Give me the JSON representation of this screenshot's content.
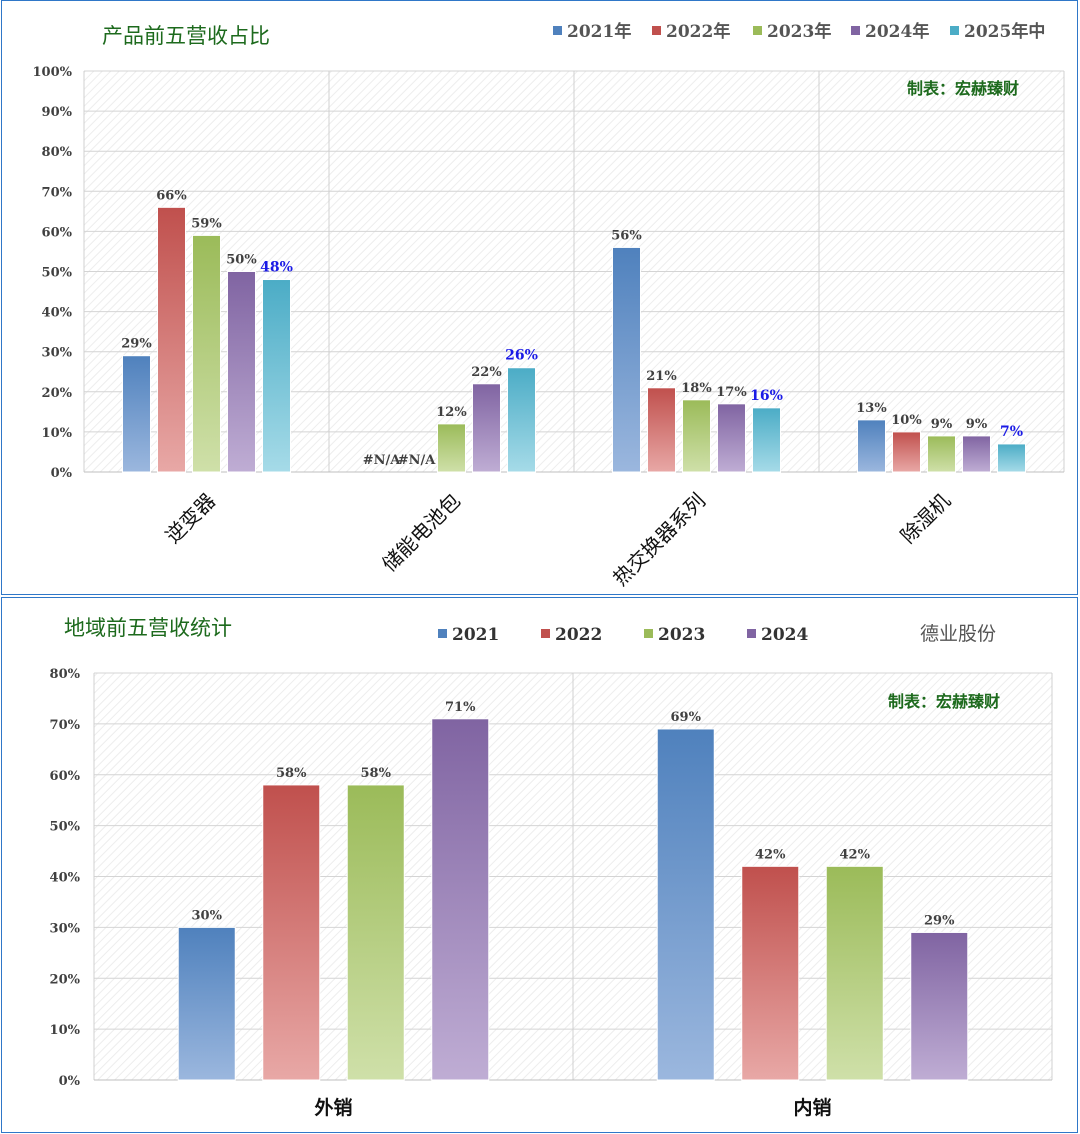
{
  "chart_data": [
    {
      "type": "bar",
      "title": "产品前五营收占比",
      "credit": "制表：宏赫臻财",
      "categories": [
        "逆变器",
        "储能电池包",
        "热交换器系列",
        "除湿机"
      ],
      "series": [
        {
          "name": "2021年",
          "values": [
            29,
            null,
            56,
            13
          ],
          "color": "#4f81bd",
          "color_light": "#9bb7de"
        },
        {
          "name": "2022年",
          "values": [
            66,
            null,
            21,
            10
          ],
          "color": "#c0504d",
          "color_light": "#e8a8a6"
        },
        {
          "name": "2023年",
          "values": [
            59,
            12,
            18,
            9
          ],
          "color": "#9bbb59",
          "color_light": "#cfe0a9"
        },
        {
          "name": "2024年",
          "values": [
            50,
            22,
            17,
            9
          ],
          "color": "#8064a2",
          "color_light": "#bfadd4"
        },
        {
          "name": "2025年中",
          "values": [
            48,
            26,
            16,
            7
          ],
          "color": "#4bacc6",
          "color_light": "#a6dbe8"
        }
      ],
      "data_labels": [
        [
          "29%",
          "66%",
          "59%",
          "50%",
          "48%"
        ],
        [
          "#N/A",
          "#N/A",
          "12%",
          "22%",
          "26%"
        ],
        [
          "56%",
          "21%",
          "18%",
          "17%",
          "16%"
        ],
        [
          "13%",
          "10%",
          "9%",
          "9%",
          "7%"
        ]
      ],
      "y_ticks": [
        "0%",
        "10%",
        "20%",
        "30%",
        "40%",
        "50%",
        "60%",
        "70%",
        "80%",
        "90%",
        "100%"
      ],
      "ylim": [
        0,
        100
      ],
      "grid": true,
      "legend": "top-right"
    },
    {
      "type": "bar",
      "title": "地域前五营收统计",
      "company": "德业股份",
      "credit": "制表：宏赫臻财",
      "categories": [
        "外销",
        "内销"
      ],
      "series": [
        {
          "name": "2021",
          "values": [
            30,
            69
          ],
          "color": "#4f81bd",
          "color_light": "#9bb7de"
        },
        {
          "name": "2022",
          "values": [
            58,
            42
          ],
          "color": "#c0504d",
          "color_light": "#e8a8a6"
        },
        {
          "name": "2023",
          "values": [
            58,
            42
          ],
          "color": "#9bbb59",
          "color_light": "#cfe0a9"
        },
        {
          "name": "2024",
          "values": [
            71,
            29
          ],
          "color": "#8064a2",
          "color_light": "#bfadd4"
        }
      ],
      "data_labels": [
        [
          "30%",
          "58%",
          "58%",
          "71%"
        ],
        [
          "69%",
          "42%",
          "42%",
          "29%"
        ]
      ],
      "y_ticks": [
        "0%",
        "10%",
        "20%",
        "30%",
        "40%",
        "50%",
        "60%",
        "70%",
        "80%"
      ],
      "ylim": [
        0,
        80
      ],
      "grid": true,
      "legend": "top-center"
    }
  ]
}
